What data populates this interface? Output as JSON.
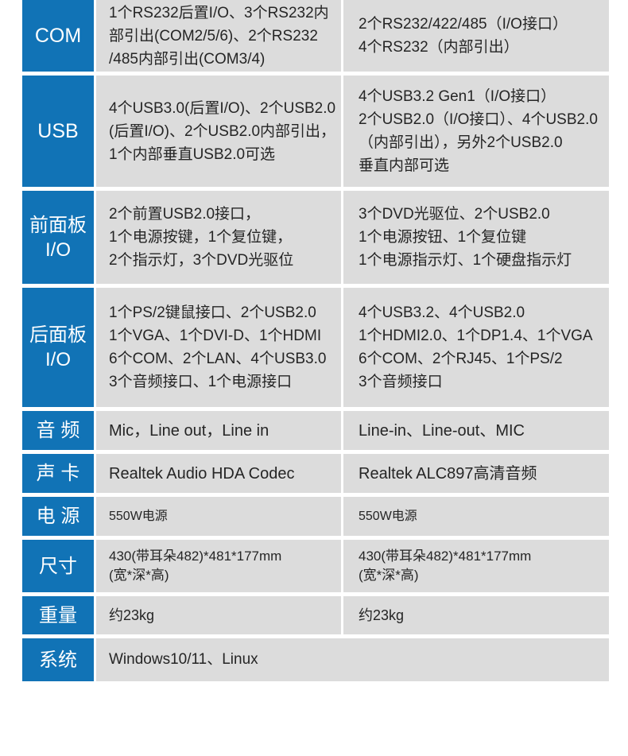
{
  "colors": {
    "accent_blue": "#1173b6",
    "cell_gray": "#dcdcdc",
    "header_text": "#ffffff",
    "body_text": "#252525"
  },
  "table": {
    "rows": [
      {
        "label_lines": [
          "COM"
        ],
        "col1_lines": [
          "1个RS232后置I/O、3个RS232内",
          "部引出(COM2/5/6)、2个RS232",
          "/485内部引出(COM3/4)"
        ],
        "col2_lines": [
          "2个RS232/422/485（I/O接口）",
          "4个RS232（内部引出）"
        ]
      },
      {
        "label_lines": [
          "USB"
        ],
        "col1_lines": [
          "4个USB3.0(后置I/O)、2个USB2.0",
          "(后置I/O)、2个USB2.0内部引出，",
          "1个内部垂直USB2.0可选"
        ],
        "col2_lines": [
          "4个USB3.2 Gen1（I/O接口）",
          "2个USB2.0（I/O接口）、4个USB2.0",
          "（内部引出），另外2个USB2.0",
          "垂直内部可选"
        ]
      },
      {
        "label_lines": [
          "前面板",
          "I/O"
        ],
        "col1_lines": [
          "2个前置USB2.0接口，",
          "1个电源按键，1个复位键，",
          "2个指示灯，3个DVD光驱位"
        ],
        "col2_lines": [
          "3个DVD光驱位、2个USB2.0",
          "1个电源按钮、1个复位键",
          "1个电源指示灯、1个硬盘指示灯"
        ]
      },
      {
        "label_lines": [
          "后面板",
          "I/O"
        ],
        "col1_lines": [
          "1个PS/2键鼠接口、2个USB2.0",
          "1个VGA、1个DVI-D、1个HDMI",
          "6个COM、2个LAN、4个USB3.0",
          "3个音频接口、1个电源接口"
        ],
        "col2_lines": [
          "4个USB3.2、4个USB2.0",
          "1个HDMI2.0、1个DP1.4、1个VGA",
          "6个COM、2个RJ45、1个PS/2",
          "3个音频接口"
        ]
      },
      {
        "label_lines": [
          "音 频"
        ],
        "col1_lines": [
          "Mic，Line out，Line in"
        ],
        "col2_lines": [
          "Line-in、Line-out、MIC"
        ]
      },
      {
        "label_lines": [
          "声 卡"
        ],
        "col1_lines": [
          "Realtek Audio HDA Codec"
        ],
        "col2_lines": [
          "Realtek ALC897高清音频"
        ]
      },
      {
        "label_lines": [
          "电 源"
        ],
        "col1_lines": [
          "550W电源"
        ],
        "col2_lines": [
          "550W电源"
        ]
      },
      {
        "label_lines": [
          "尺寸"
        ],
        "col1_lines": [
          "430(带耳朵482)*481*177mm",
          "(宽*深*高)"
        ],
        "col2_lines": [
          "430(带耳朵482)*481*177mm",
          "(宽*深*高)"
        ]
      },
      {
        "label_lines": [
          "重量"
        ],
        "col1_lines": [
          "约23kg"
        ],
        "col2_lines": [
          "约23kg"
        ]
      },
      {
        "label_lines": [
          "系统"
        ],
        "merged_lines": [
          "Windows10/11、Linux"
        ]
      }
    ]
  }
}
